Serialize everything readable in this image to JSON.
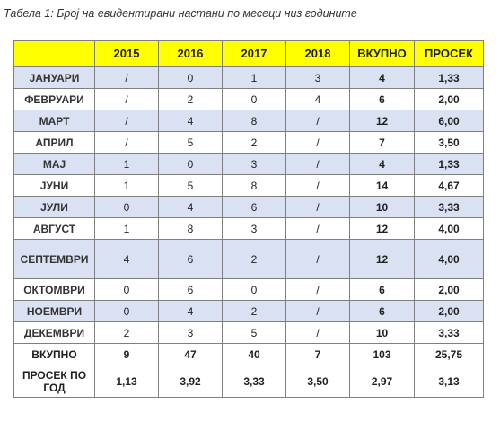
{
  "caption": "Табела 1: Број на евидентирани настани по месеци низ годините",
  "headers": [
    "",
    "2015",
    "2016",
    "2017",
    "2018",
    "ВКУПНО",
    "ПРОСЕК"
  ],
  "rows": [
    {
      "month": "ЈАНУАРИ",
      "v2015": "/",
      "v2016": "0",
      "v2017": "1",
      "v2018": "3",
      "total": "4",
      "avg": "1,33"
    },
    {
      "month": "ФЕВРУАРИ",
      "v2015": "/",
      "v2016": "2",
      "v2017": "0",
      "v2018": "4",
      "total": "6",
      "avg": "2,00"
    },
    {
      "month": "МАРТ",
      "v2015": "/",
      "v2016": "4",
      "v2017": "8",
      "v2018": "/",
      "total": "12",
      "avg": "6,00"
    },
    {
      "month": "АПРИЛ",
      "v2015": "/",
      "v2016": "5",
      "v2017": "2",
      "v2018": "/",
      "total": "7",
      "avg": "3,50"
    },
    {
      "month": "МАЈ",
      "v2015": "1",
      "v2016": "0",
      "v2017": "3",
      "v2018": "/",
      "total": "4",
      "avg": "1,33"
    },
    {
      "month": "ЈУНИ",
      "v2015": "1",
      "v2016": "5",
      "v2017": "8",
      "v2018": "/",
      "total": "14",
      "avg": "4,67"
    },
    {
      "month": "ЈУЛИ",
      "v2015": "0",
      "v2016": "4",
      "v2017": "6",
      "v2018": "/",
      "total": "10",
      "avg": "3,33"
    },
    {
      "month": "АВГУСТ",
      "v2015": "1",
      "v2016": "8",
      "v2017": "3",
      "v2018": "/",
      "total": "12",
      "avg": "4,00"
    },
    {
      "month": "СЕПТЕМВРИ",
      "v2015": "4",
      "v2016": "6",
      "v2017": "2",
      "v2018": "/",
      "total": "12",
      "avg": "4,00"
    },
    {
      "month": "ОКТОМВРИ",
      "v2015": "0",
      "v2016": "6",
      "v2017": "0",
      "v2018": "/",
      "total": "6",
      "avg": "2,00"
    },
    {
      "month": "НОЕМВРИ",
      "v2015": "0",
      "v2016": "4",
      "v2017": "2",
      "v2018": "/",
      "total": "6",
      "avg": "2,00"
    },
    {
      "month": "ДЕКЕМВРИ",
      "v2015": "2",
      "v2016": "3",
      "v2017": "5",
      "v2018": "/",
      "total": "10",
      "avg": "3,33"
    }
  ],
  "sum_row": {
    "label": "ВКУПНО",
    "v2015": "9",
    "v2016": "47",
    "v2017": "40",
    "v2018": "7",
    "total": "103",
    "avg": "25,75"
  },
  "avg_row": {
    "label": "ПРОСЕК ПО ГОД",
    "v2015": "1,13",
    "v2016": "3,92",
    "v2017": "3,33",
    "v2018": "3,50",
    "total": "2,97",
    "avg": "3,13"
  },
  "colors": {
    "header_bg": "#ffff00",
    "stripe_bg": "#d9e1f2",
    "border": "#7f7f7f"
  }
}
